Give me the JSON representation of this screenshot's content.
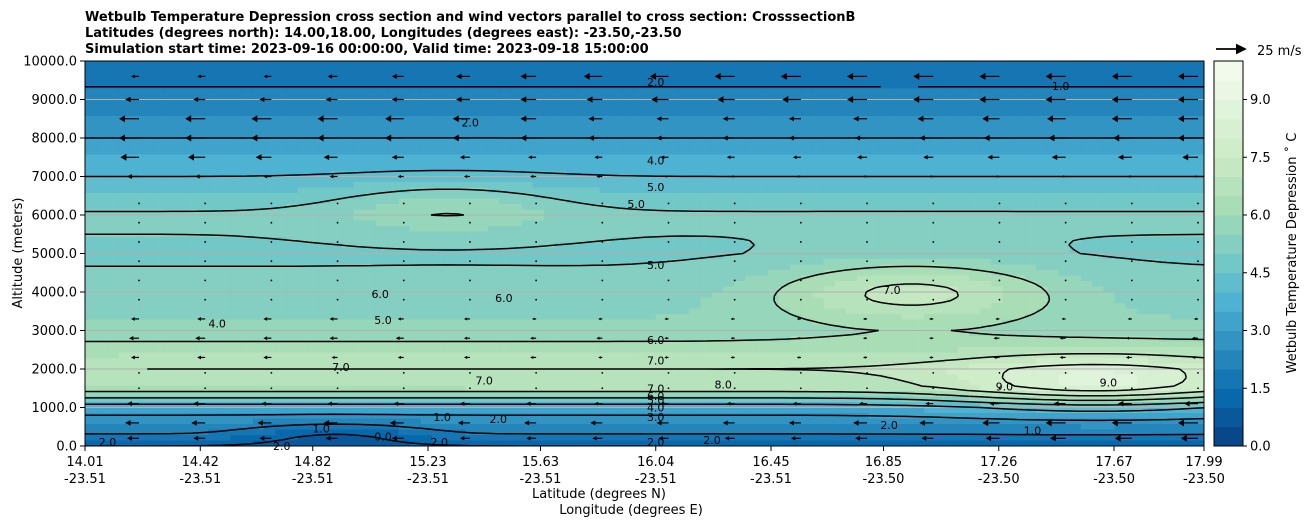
{
  "chart_data": {
    "type": "heatmap",
    "title_lines": [
      "Wetbulb Temperature Depression cross section and wind vectors parallel to cross section: CrosssectionB",
      "Latitudes (degrees north): 14.00,18.00, Longitudes (degrees east): -23.50,-23.50",
      "Simulation start time: 2023-09-16 00:00:00, Valid time: 2023-09-18 15:00:00"
    ],
    "ylabel": "Altitude (meters)",
    "xlabel_lat": "Latitude (degrees N)",
    "xlabel_lon": "Longitude (degrees E)",
    "ylim": [
      0,
      10000
    ],
    "yticks": [
      "0.0",
      "1000.0",
      "2000.0",
      "3000.0",
      "4000.0",
      "5000.0",
      "6000.0",
      "7000.0",
      "8000.0",
      "9000.0",
      "10000.0"
    ],
    "xlim": [
      14.01,
      17.99
    ],
    "xticks": [
      {
        "lat": "14.01",
        "lon": "-23.51"
      },
      {
        "lat": "14.42",
        "lon": "-23.51"
      },
      {
        "lat": "14.82",
        "lon": "-23.51"
      },
      {
        "lat": "15.23",
        "lon": "-23.51"
      },
      {
        "lat": "15.63",
        "lon": "-23.51"
      },
      {
        "lat": "16.04",
        "lon": "-23.51"
      },
      {
        "lat": "16.45",
        "lon": "-23.51"
      },
      {
        "lat": "16.85",
        "lon": "-23.50"
      },
      {
        "lat": "17.26",
        "lon": "-23.50"
      },
      {
        "lat": "17.67",
        "lon": "-23.50"
      },
      {
        "lat": "17.99",
        "lon": "-23.50"
      }
    ],
    "colorbar": {
      "label": "Wetbulb Temperature Depression ˚ C",
      "ticks": [
        "0.0",
        "1.5",
        "3.0",
        "4.5",
        "6.0",
        "7.5",
        "9.0"
      ],
      "range": [
        0,
        10
      ],
      "colors": [
        "#084081",
        "#0868ac",
        "#2b8cbe",
        "#4eb3d3",
        "#7bccc4",
        "#a8ddb5",
        "#ccebc5",
        "#e0f3db",
        "#f7fcf0"
      ]
    },
    "wind_key": "25 m/s",
    "grid": "horizontal",
    "profile": {
      "alt": [
        0,
        300,
        600,
        1000,
        1500,
        2000,
        2500,
        3000,
        4000,
        5000,
        6000,
        7000,
        8000,
        9000,
        10000
      ],
      "value": [
        1.0,
        2.0,
        2.5,
        3.5,
        6.5,
        7.0,
        6.3,
        5.6,
        5.2,
        4.9,
        5.1,
        4.0,
        3.0,
        2.2,
        1.6
      ]
    },
    "features": [
      {
        "lat": 16.95,
        "alt": 4000,
        "amp": 2.0,
        "sx": 0.5,
        "sy": 800
      },
      {
        "lat": 17.6,
        "alt": 1600,
        "amp": 2.0,
        "sx": 0.5,
        "sy": 700
      },
      {
        "lat": 15.3,
        "alt": 6200,
        "amp": 1.0,
        "sx": 0.4,
        "sy": 700
      },
      {
        "lat": 14.9,
        "alt": 300,
        "amp": -1.0,
        "sx": 0.3,
        "sy": 300
      }
    ],
    "contour_labels": [
      {
        "text": "2.0",
        "lat": 16.04,
        "alt": 9450
      },
      {
        "text": "2.0",
        "lat": 15.38,
        "alt": 8400
      },
      {
        "text": "1.0",
        "lat": 17.48,
        "alt": 9350
      },
      {
        "text": "4.0",
        "lat": 16.04,
        "alt": 7420
      },
      {
        "text": "5.0",
        "lat": 16.04,
        "alt": 6730
      },
      {
        "text": "5.0",
        "lat": 15.97,
        "alt": 6280
      },
      {
        "text": "5.0",
        "lat": 16.04,
        "alt": 4700
      },
      {
        "text": "6.0",
        "lat": 15.06,
        "alt": 3950
      },
      {
        "text": "6.0",
        "lat": 15.5,
        "alt": 3850
      },
      {
        "text": "7.0",
        "lat": 16.88,
        "alt": 4050
      },
      {
        "text": "4.0",
        "lat": 14.48,
        "alt": 3180
      },
      {
        "text": "5.0",
        "lat": 15.07,
        "alt": 3270
      },
      {
        "text": "6.0",
        "lat": 16.04,
        "alt": 2750
      },
      {
        "text": "7.0",
        "lat": 16.04,
        "alt": 2220
      },
      {
        "text": "7.0",
        "lat": 14.92,
        "alt": 2050
      },
      {
        "text": "7.0",
        "lat": 15.43,
        "alt": 1700
      },
      {
        "text": "8.0",
        "lat": 16.28,
        "alt": 1600
      },
      {
        "text": "9.0",
        "lat": 17.28,
        "alt": 1550
      },
      {
        "text": "9.0",
        "lat": 17.65,
        "alt": 1650
      },
      {
        "text": "7.0",
        "lat": 16.04,
        "alt": 1500
      },
      {
        "text": "6.0",
        "lat": 16.04,
        "alt": 1300
      },
      {
        "text": "5.0",
        "lat": 16.04,
        "alt": 1200
      },
      {
        "text": "4.0",
        "lat": 16.04,
        "alt": 1000
      },
      {
        "text": "3.0",
        "lat": 16.04,
        "alt": 750
      },
      {
        "text": "2.0",
        "lat": 16.04,
        "alt": 100
      },
      {
        "text": "2.0",
        "lat": 14.09,
        "alt": 100
      },
      {
        "text": "2.0",
        "lat": 14.71,
        "alt": 0
      },
      {
        "text": "1.0",
        "lat": 14.85,
        "alt": 450
      },
      {
        "text": "1.0",
        "lat": 15.28,
        "alt": 750
      },
      {
        "text": "2.0",
        "lat": 15.27,
        "alt": 100
      },
      {
        "text": "0.0",
        "lat": 15.07,
        "alt": 250
      },
      {
        "text": "2.0",
        "lat": 15.48,
        "alt": 700
      },
      {
        "text": "2.0",
        "lat": 16.24,
        "alt": 150
      },
      {
        "text": "2.0",
        "lat": 16.87,
        "alt": 550
      },
      {
        "text": "1.0",
        "lat": 17.38,
        "alt": 400
      }
    ],
    "wind_rows": [
      {
        "alt": 9600,
        "mag": [
          0.3,
          0.3,
          0.3,
          0.4,
          0.5,
          0.6,
          0.7,
          0.9,
          0.9,
          1.0,
          1.0,
          1.0,
          1.0,
          1.0,
          1.0,
          1.0,
          1.0
        ]
      },
      {
        "alt": 9000,
        "mag": [
          0.6,
          0.5,
          0.5,
          0.5,
          0.5,
          0.6,
          0.7,
          0.7,
          0.8,
          0.8,
          0.9,
          1.0,
          1.0,
          1.0,
          1.0,
          1.0,
          1.0
        ]
      },
      {
        "alt": 8500,
        "mag": [
          1.0,
          1.0,
          1.0,
          1.0,
          0.9,
          0.8,
          0.7,
          0.6,
          0.5,
          0.5,
          0.5,
          0.6,
          0.7,
          0.8,
          0.9,
          1.0,
          1.0
        ]
      },
      {
        "alt": 8000,
        "mag": [
          1.0,
          1.0,
          1.0,
          1.0,
          0.9,
          0.8,
          0.7,
          0.6,
          0.5,
          0.5,
          0.5,
          0.5,
          0.6,
          0.7,
          0.8,
          0.9,
          1.0
        ]
      },
      {
        "alt": 7500,
        "mag": [
          0.9,
          0.8,
          0.7,
          0.6,
          0.5,
          0.4,
          0.3,
          0.3,
          0.3,
          0.3,
          0.3,
          0.4,
          0.4,
          0.5,
          0.6,
          0.6,
          0.7
        ]
      },
      {
        "alt": 7000,
        "mag": [
          0.5,
          0.4,
          0.3,
          0.3,
          0.2,
          0.2,
          0.2,
          0.2,
          0.1,
          0.1,
          0.1,
          0.1,
          0.1,
          0.1,
          0.1,
          0.1,
          0.1
        ]
      },
      {
        "alt": 3300,
        "mag": [
          0.3,
          0.3,
          0.3,
          0.3,
          0.2,
          0.2,
          0.1,
          0.1,
          0.1,
          0.1,
          0.1,
          0.1,
          0.1,
          0.1,
          0.1,
          0.1,
          0.1
        ]
      },
      {
        "alt": 2800,
        "mag": [
          0.4,
          0.4,
          0.3,
          0.3,
          0.3,
          0.2,
          0.2,
          0.2,
          0.1,
          0.1,
          0.1,
          0.1,
          0.1,
          0.2,
          0.2,
          0.2,
          0.2
        ]
      },
      {
        "alt": 2300,
        "mag": [
          0.3,
          0.3,
          0.3,
          0.2,
          0.2,
          0.2,
          0.2,
          0.1,
          0.1,
          0.1,
          0.1,
          0.1,
          0.1,
          0.2,
          0.2,
          0.2,
          0.2
        ]
      },
      {
        "alt": 1100,
        "mag": [
          0.5,
          0.5,
          0.4,
          0.4,
          0.4,
          0.4,
          0.4,
          0.3,
          0.3,
          0.3,
          0.3,
          0.3,
          0.3,
          0.4,
          0.5,
          0.6,
          0.6
        ]
      },
      {
        "alt": 600,
        "mag": [
          0.6,
          0.6,
          0.6,
          0.6,
          0.6,
          0.5,
          0.5,
          0.5,
          0.5,
          0.5,
          0.5,
          0.6,
          0.6,
          0.8,
          1.0,
          1.0,
          1.0
        ]
      },
      {
        "alt": 200,
        "mag": [
          0.5,
          0.5,
          0.5,
          0.5,
          0.5,
          0.4,
          0.4,
          0.4,
          0.4,
          0.4,
          0.4,
          0.5,
          0.5,
          0.6,
          0.7,
          0.8,
          0.8
        ]
      }
    ]
  }
}
